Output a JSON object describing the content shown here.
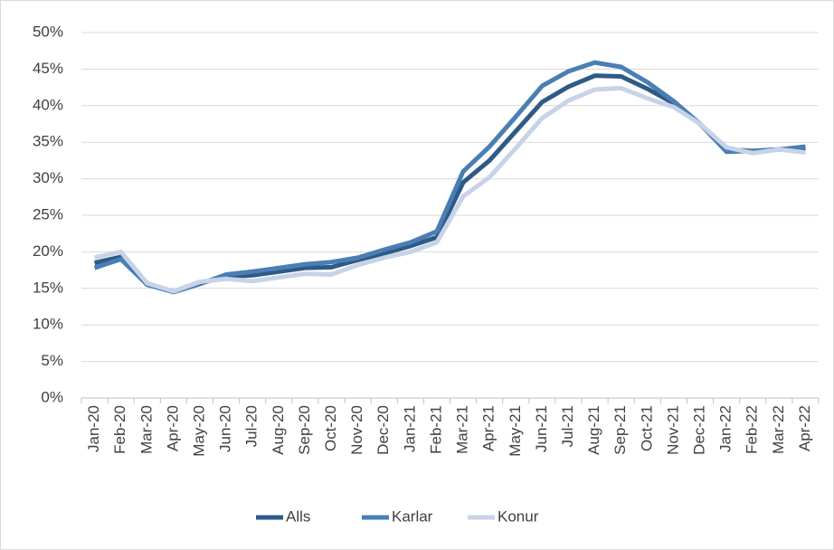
{
  "chart_data": {
    "type": "line",
    "categories": [
      "Jan-20",
      "Feb-20",
      "Mar-20",
      "Apr-20",
      "May-20",
      "Jun-20",
      "Jul-20",
      "Aug-20",
      "Sep-20",
      "Oct-20",
      "Nov-20",
      "Dec-20",
      "Jan-21",
      "Feb-21",
      "Mar-21",
      "Apr-21",
      "May-21",
      "Jun-21",
      "Jul-21",
      "Aug-21",
      "Sep-21",
      "Oct-21",
      "Nov-21",
      "Dec-21",
      "Jan-22",
      "Feb-22",
      "Mar-22",
      "Apr-22"
    ],
    "series": [
      {
        "name": "Alls",
        "color": "#2e5a87",
        "values": [
          18.5,
          19.3,
          15.5,
          14.6,
          15.7,
          16.6,
          16.8,
          17.3,
          17.8,
          17.9,
          18.9,
          19.8,
          20.8,
          22.0,
          29.5,
          32.5,
          36.5,
          40.5,
          42.6,
          44.1,
          44.0,
          42.3,
          40.3,
          37.5,
          34.0,
          33.8,
          34.0,
          34.2
        ]
      },
      {
        "name": "Karlar",
        "color": "#4a7eb4",
        "values": [
          17.8,
          19.0,
          15.5,
          14.5,
          15.6,
          16.9,
          17.3,
          17.8,
          18.3,
          18.6,
          19.2,
          20.3,
          21.3,
          22.8,
          31.0,
          34.4,
          38.5,
          42.7,
          44.7,
          45.9,
          45.3,
          43.2,
          40.6,
          37.5,
          33.7,
          33.8,
          34.0,
          34.4
        ]
      },
      {
        "name": "Konur",
        "color": "#c8d3e7",
        "values": [
          19.2,
          20.0,
          15.7,
          14.6,
          15.9,
          16.3,
          16.0,
          16.5,
          17.0,
          16.9,
          18.2,
          19.2,
          20.0,
          21.3,
          27.6,
          30.2,
          34.2,
          38.3,
          40.7,
          42.2,
          42.4,
          41.0,
          39.8,
          37.5,
          34.3,
          33.5,
          34.0,
          33.6
        ]
      }
    ],
    "ylim": [
      0,
      50
    ],
    "yticks": [
      {
        "value": 0,
        "label": "0%"
      },
      {
        "value": 5,
        "label": "5%"
      },
      {
        "value": 10,
        "label": "10%"
      },
      {
        "value": 15,
        "label": "15%"
      },
      {
        "value": 20,
        "label": "20%"
      },
      {
        "value": 25,
        "label": "25%"
      },
      {
        "value": 30,
        "label": "30%"
      },
      {
        "value": 35,
        "label": "35%"
      },
      {
        "value": 40,
        "label": "40%"
      },
      {
        "value": 45,
        "label": "45%"
      },
      {
        "value": 50,
        "label": "50%"
      }
    ],
    "grid": true,
    "legend": "bottom"
  }
}
